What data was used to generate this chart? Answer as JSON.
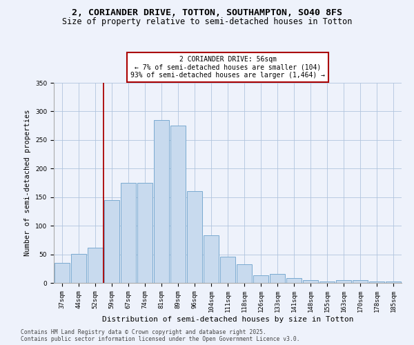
{
  "title1": "2, CORIANDER DRIVE, TOTTON, SOUTHAMPTON, SO40 8FS",
  "title2": "Size of property relative to semi-detached houses in Totton",
  "xlabel": "Distribution of semi-detached houses by size in Totton",
  "ylabel": "Number of semi-detached properties",
  "categories": [
    "37sqm",
    "44sqm",
    "52sqm",
    "59sqm",
    "67sqm",
    "74sqm",
    "81sqm",
    "89sqm",
    "96sqm",
    "104sqm",
    "111sqm",
    "118sqm",
    "126sqm",
    "133sqm",
    "141sqm",
    "148sqm",
    "155sqm",
    "163sqm",
    "170sqm",
    "178sqm",
    "185sqm"
  ],
  "values": [
    35,
    51,
    61,
    145,
    175,
    175,
    285,
    275,
    160,
    83,
    46,
    32,
    13,
    16,
    8,
    5,
    2,
    5,
    5,
    3,
    2
  ],
  "bar_color": "#c8daee",
  "bar_edge_color": "#7aaad0",
  "vline_x_idx": 2.5,
  "vline_color": "#aa0000",
  "annotation_text": "2 CORIANDER DRIVE: 56sqm\n← 7% of semi-detached houses are smaller (104)\n93% of semi-detached houses are larger (1,464) →",
  "annotation_box_color": "#ffffff",
  "annotation_box_edge": "#aa0000",
  "ylim": [
    0,
    350
  ],
  "footnote1": "Contains HM Land Registry data © Crown copyright and database right 2025.",
  "footnote2": "Contains public sector information licensed under the Open Government Licence v3.0.",
  "bg_color": "#eef2fb",
  "title_fontsize": 9.5,
  "subtitle_fontsize": 8.5,
  "tick_fontsize": 6.5,
  "ylabel_fontsize": 7.5,
  "xlabel_fontsize": 8,
  "annot_fontsize": 7,
  "footnote_fontsize": 5.8
}
